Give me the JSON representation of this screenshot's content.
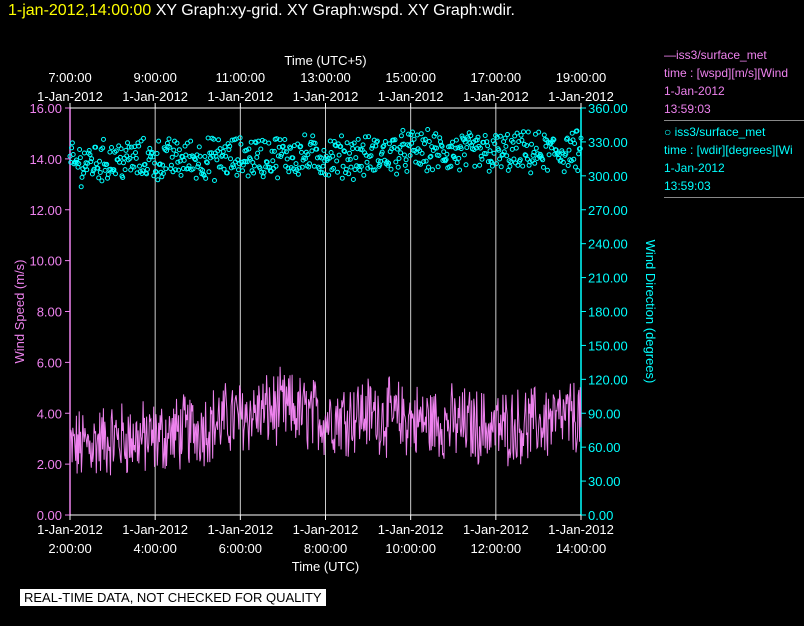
{
  "header": {
    "datetime": "1-jan-2012,14:00:00",
    "graphs": "XY Graph:xy-grid.  XY Graph:wspd.  XY Graph:wdir."
  },
  "legend": {
    "wspd": {
      "marker": "—",
      "name": "iss3/surface_met",
      "var": "time : [wspd][m/s][Wind",
      "date": "1-Jan-2012",
      "time": "13:59:03"
    },
    "wdir": {
      "marker": "○",
      "name": "iss3/surface_met",
      "var": "time : [wdir][degrees][Wi",
      "date": "1-Jan-2012",
      "time": "13:59:03"
    }
  },
  "qc_banner": "REAL-TIME DATA, NOT CHECKED FOR QUALITY",
  "colors": {
    "wspd": "#ee82ee",
    "wdir": "#00ffff",
    "grid": "#ffffff",
    "header_date": "#ffff00"
  },
  "chart_data": {
    "type": "line",
    "top_axis": {
      "label": "Time (UTC+5)",
      "ticks": [
        {
          "time": "7:00:00",
          "date": "1-Jan-2012"
        },
        {
          "time": "9:00:00",
          "date": "1-Jan-2012"
        },
        {
          "time": "11:00:00",
          "date": "1-Jan-2012"
        },
        {
          "time": "13:00:00",
          "date": "1-Jan-2012"
        },
        {
          "time": "15:00:00",
          "date": "1-Jan-2012"
        },
        {
          "time": "17:00:00",
          "date": "1-Jan-2012"
        },
        {
          "time": "19:00:00",
          "date": "1-Jan-2012"
        }
      ]
    },
    "bottom_axis": {
      "label": "Time (UTC)",
      "ticks": [
        {
          "time": "2:00:00",
          "date": "1-Jan-2012"
        },
        {
          "time": "4:00:00",
          "date": "1-Jan-2012"
        },
        {
          "time": "6:00:00",
          "date": "1-Jan-2012"
        },
        {
          "time": "8:00:00",
          "date": "1-Jan-2012"
        },
        {
          "time": "10:00:00",
          "date": "1-Jan-2012"
        },
        {
          "time": "12:00:00",
          "date": "1-Jan-2012"
        },
        {
          "time": "14:00:00",
          "date": "1-Jan-2012"
        }
      ],
      "range_hours_utc": [
        2,
        14
      ]
    },
    "y_left": {
      "label": "Wind Speed (m/s)",
      "range": [
        0,
        16
      ],
      "ticks": [
        "0.00",
        "2.00",
        "4.00",
        "6.00",
        "8.00",
        "10.00",
        "12.00",
        "14.00",
        "16.00"
      ]
    },
    "y_right": {
      "label": "Wind Direction (degrees)",
      "range": [
        0,
        360
      ],
      "ticks": [
        "0.00",
        "30.00",
        "60.00",
        "90.00",
        "120.00",
        "150.00",
        "180.00",
        "210.00",
        "240.00",
        "270.00",
        "300.00",
        "330.00",
        "360.00"
      ]
    },
    "grid": "vertical lines at bottom-axis ticks",
    "series": [
      {
        "name": "iss3/surface_met",
        "variable": "wspd",
        "style": "line",
        "axis": "left",
        "hourly_mean": [
          {
            "hour": 2,
            "value": 2.6
          },
          {
            "hour": 3,
            "value": 3.0
          },
          {
            "hour": 4,
            "value": 3.0
          },
          {
            "hour": 5,
            "value": 3.4
          },
          {
            "hour": 6,
            "value": 3.9
          },
          {
            "hour": 7,
            "value": 4.2
          },
          {
            "hour": 8,
            "value": 3.8
          },
          {
            "hour": 9,
            "value": 4.0
          },
          {
            "hour": 10,
            "value": 3.7
          },
          {
            "hour": 11,
            "value": 3.6
          },
          {
            "hour": 12,
            "value": 3.4
          },
          {
            "hour": 13,
            "value": 3.6
          },
          {
            "hour": 14,
            "value": 3.9
          }
        ],
        "approx_range": [
          1.0,
          6.1
        ]
      },
      {
        "name": "iss3/surface_met",
        "variable": "wdir",
        "style": "scatter",
        "axis": "right",
        "hourly_mean": [
          {
            "hour": 2,
            "value": 310
          },
          {
            "hour": 3,
            "value": 314
          },
          {
            "hour": 4,
            "value": 314
          },
          {
            "hour": 5,
            "value": 315
          },
          {
            "hour": 6,
            "value": 316
          },
          {
            "hour": 7,
            "value": 318
          },
          {
            "hour": 8,
            "value": 317
          },
          {
            "hour": 9,
            "value": 317
          },
          {
            "hour": 10,
            "value": 322
          },
          {
            "hour": 11,
            "value": 320
          },
          {
            "hour": 12,
            "value": 320
          },
          {
            "hour": 13,
            "value": 320
          },
          {
            "hour": 14,
            "value": 322
          }
        ],
        "approx_range": [
          285,
          350
        ]
      }
    ]
  }
}
